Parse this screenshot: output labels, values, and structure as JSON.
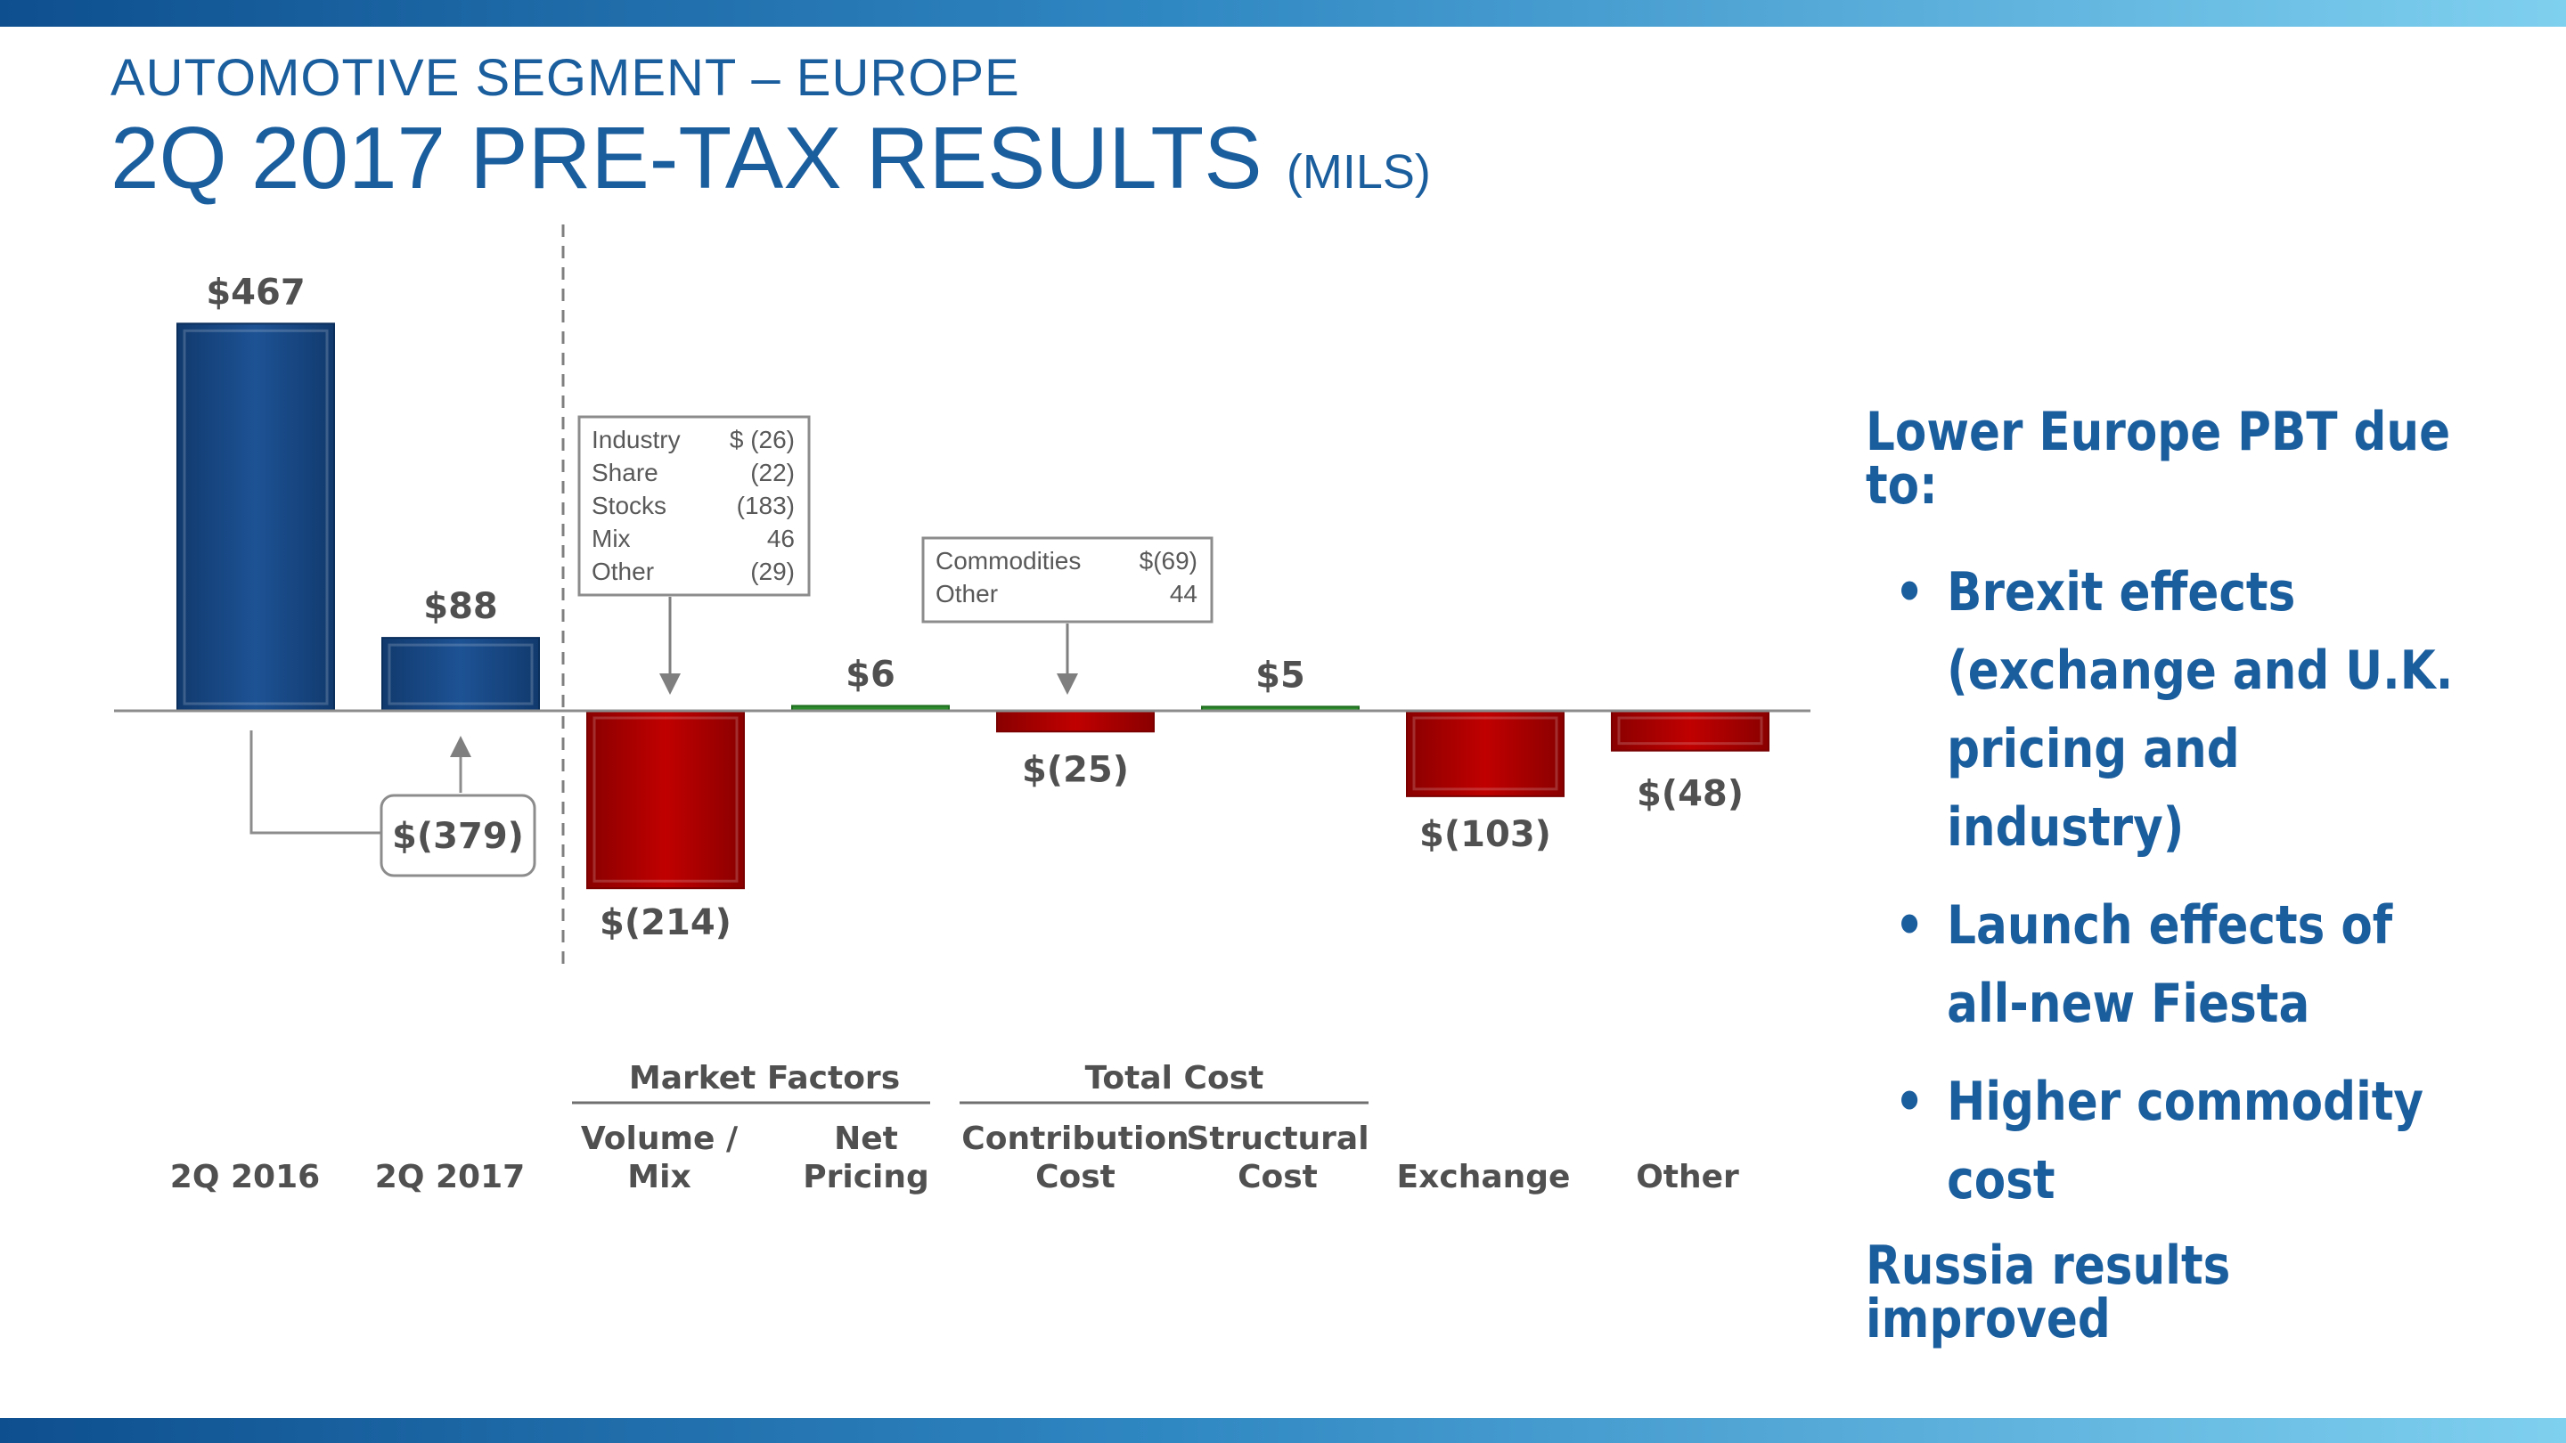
{
  "header": {
    "supertitle": "AUTOMOTIVE SEGMENT – EUROPE",
    "title": "2Q 2017 PRE-TAX RESULTS",
    "title_unit": "(MILS)"
  },
  "chart_data": {
    "type": "bar",
    "subtype": "waterfall",
    "categories": [
      "2Q 2016",
      "2Q 2017",
      "Volume / Mix",
      "Net Pricing",
      "Contribution Cost",
      "Structural Cost",
      "Exchange",
      "Other"
    ],
    "category_lines": [
      [
        "2Q 2016"
      ],
      [
        "2Q 2017"
      ],
      [
        "Volume /",
        "Mix"
      ],
      [
        "Net",
        "Pricing"
      ],
      [
        "Contribution",
        "Cost"
      ],
      [
        "Structural",
        "Cost"
      ],
      [
        "Exchange"
      ],
      [
        "Other"
      ]
    ],
    "values": [
      467,
      88,
      -214,
      6,
      -25,
      5,
      -103,
      -48
    ],
    "value_labels": [
      "$467",
      "$88",
      "$(214)",
      "$6",
      "$(25)",
      "$5",
      "$(103)",
      "$(48)"
    ],
    "bar_kind": [
      "total",
      "total",
      "change",
      "change",
      "change",
      "change",
      "change",
      "change"
    ],
    "change_between_totals": {
      "value": -379,
      "label": "$(379)"
    },
    "groups": [
      {
        "label": "Market Factors",
        "categories": [
          "Volume / Mix",
          "Net Pricing"
        ]
      },
      {
        "label": "Total Cost",
        "categories": [
          "Contribution Cost",
          "Structural Cost"
        ]
      }
    ],
    "callouts": [
      {
        "category": "Volume / Mix",
        "rows": [
          {
            "label": "Industry",
            "value": "$ (26)"
          },
          {
            "label": "Share",
            "value": "(22)"
          },
          {
            "label": "Stocks",
            "value": "(183)"
          },
          {
            "label": "Mix",
            "value": "46"
          },
          {
            "label": "Other",
            "value": "(29)"
          }
        ]
      },
      {
        "category": "Contribution Cost",
        "rows": [
          {
            "label": "Commodities",
            "value": "$(69)"
          },
          {
            "label": "Other",
            "value": "44"
          }
        ]
      }
    ],
    "colors": {
      "total": "#1d5294",
      "negative": "#c00000",
      "positive": "#2e8b2e",
      "label_text": "#505050",
      "baseline": "#8c8c8c"
    },
    "xlabel": "",
    "ylabel": "",
    "grid": false,
    "legend": "none"
  },
  "explanation": {
    "heading": "Lower Europe PBT due to:",
    "bullet_char": "•",
    "bullets": [
      [
        "Brexit  effects",
        "(exchange and U.K.",
        "pricing and industry)"
      ],
      [
        "Launch effects of",
        "all-new Fiesta"
      ],
      [
        "Higher commodity cost"
      ]
    ],
    "footer": "Russia results improved"
  }
}
